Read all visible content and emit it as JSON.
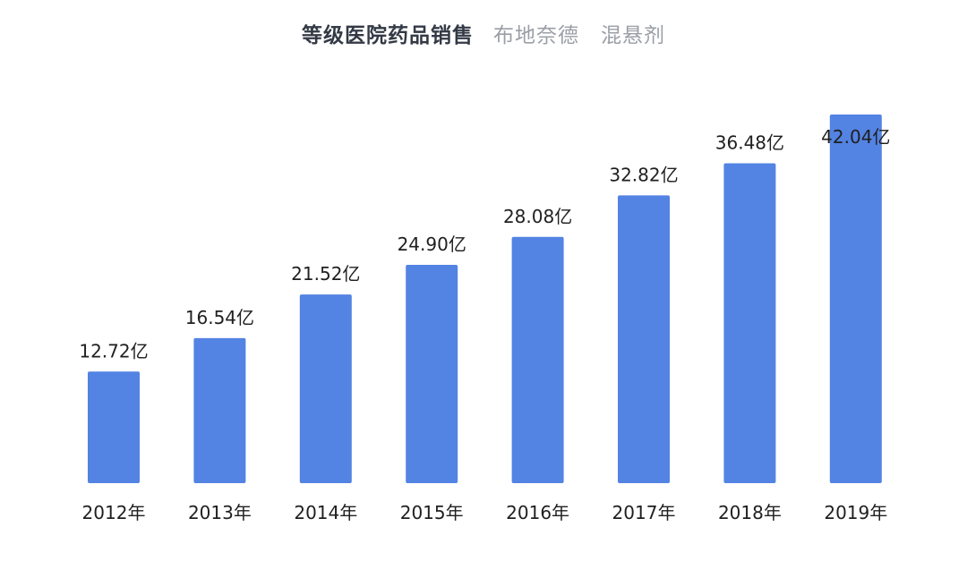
{
  "title": {
    "main": "等级医院药品销售",
    "subtitle": "布地奈德　混悬剂"
  },
  "colors": {
    "bar": "#5383e3",
    "title": "#333a45",
    "subtitle": "#9a9ea6"
  },
  "chart_data": {
    "type": "bar",
    "title": "等级医院药品销售 布地奈德 混悬剂",
    "xlabel": "",
    "ylabel": "",
    "unit": "亿",
    "categories": [
      "2012年",
      "2013年",
      "2014年",
      "2015年",
      "2016年",
      "2017年",
      "2018年",
      "2019年"
    ],
    "values": [
      12.72,
      16.54,
      21.52,
      24.9,
      28.08,
      32.82,
      36.48,
      42.04
    ],
    "labels": [
      "12.72亿",
      "16.54亿",
      "21.52亿",
      "24.90亿",
      "28.08亿",
      "32.82亿",
      "36.48亿",
      "42.04亿"
    ],
    "ylim": [
      0,
      42.04
    ],
    "grid": false,
    "legend": "none"
  }
}
